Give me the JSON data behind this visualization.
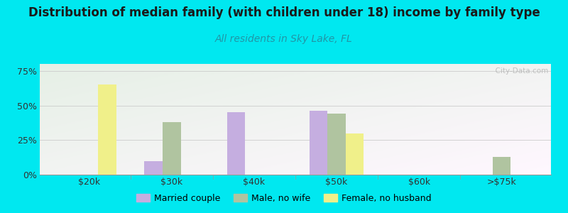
{
  "title": "Distribution of median family (with children under 18) income by family type",
  "subtitle": "All residents in Sky Lake, FL",
  "categories": [
    "$20k",
    "$30k",
    "$40k",
    "$50k",
    "$60k",
    ">$75k"
  ],
  "series": {
    "Married couple": [
      0,
      10,
      45,
      46,
      0,
      0
    ],
    "Male, no wife": [
      0,
      38,
      0,
      44,
      0,
      13
    ],
    "Female, no husband": [
      65,
      0,
      0,
      30,
      0,
      0
    ]
  },
  "colors": {
    "Married couple": "#c5aee0",
    "Male, no wife": "#b0c4a0",
    "Female, no husband": "#f0f08a"
  },
  "bar_width": 0.22,
  "ylim": [
    0,
    80
  ],
  "yticks": [
    0,
    25,
    50,
    75
  ],
  "yticklabels": [
    "0%",
    "25%",
    "50%",
    "75%"
  ],
  "background_color": "#00e8f0",
  "title_fontsize": 12,
  "subtitle_fontsize": 10,
  "subtitle_color": "#2196a6",
  "watermark": "  City-Data.com"
}
